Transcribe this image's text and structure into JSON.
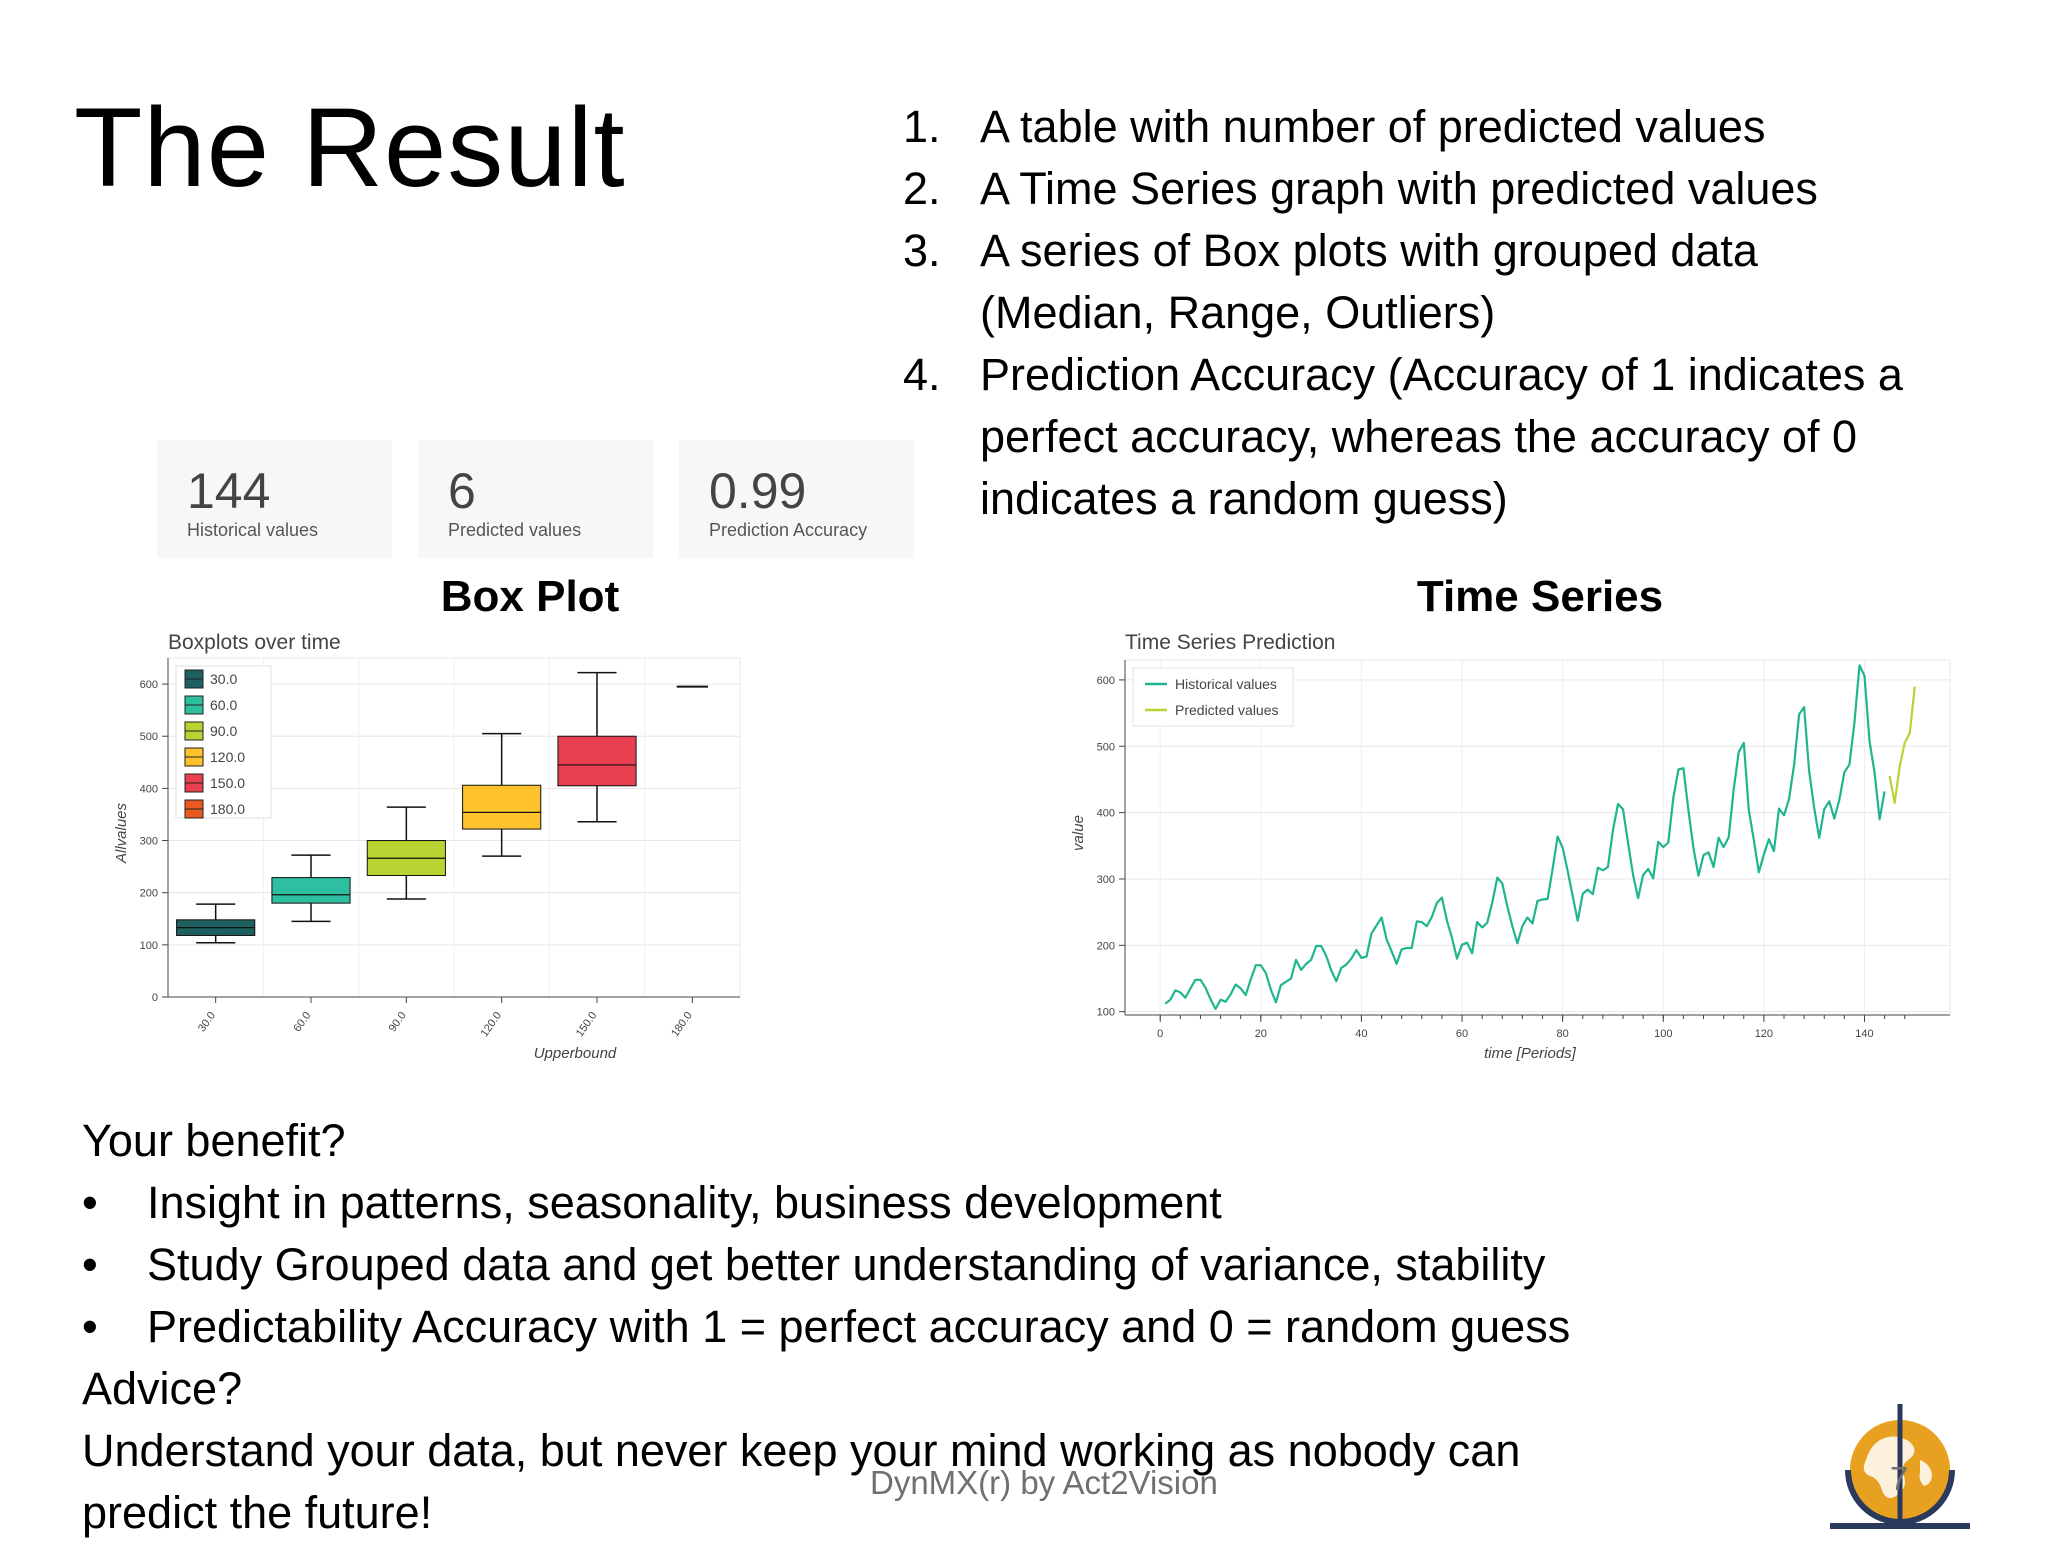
{
  "title": "The Result",
  "list_items": [
    {
      "num": "1.",
      "text": "A table with number of predicted values"
    },
    {
      "num": "2.",
      "text": "A Time Series graph with predicted values"
    },
    {
      "num": "3.",
      "text": "A series of Box plots with grouped data (Median, Range, Outliers)"
    },
    {
      "num": "4.",
      "text": "Prediction Accuracy (Accuracy of 1 indicates a perfect accuracy, whereas the accuracy of 0 indicates a random guess)"
    }
  ],
  "kpis": [
    {
      "value": "144",
      "label": "Historical values"
    },
    {
      "value": "6",
      "label": "Predicted values"
    },
    {
      "value": "0.99",
      "label": "Prediction Accuracy"
    }
  ],
  "box_heading": "Box Plot",
  "ts_heading": "Time Series",
  "chart_data": [
    {
      "type": "box",
      "title": "Boxplots over time",
      "xlabel": "Upperbound",
      "ylabel": "Allvalues",
      "ylim": [
        0,
        650
      ],
      "yticks": [
        0,
        100,
        200,
        300,
        400,
        500,
        600
      ],
      "categories": [
        "30.0",
        "60.0",
        "90.0",
        "120.0",
        "150.0",
        "180.0"
      ],
      "boxes": [
        {
          "name": "30.0",
          "min": 104,
          "q1": 118,
          "median": 133,
          "q3": 148,
          "max": 178,
          "color": "#1e5f5f"
        },
        {
          "name": "60.0",
          "min": 145,
          "q1": 180,
          "median": 196,
          "q3": 229,
          "max": 272,
          "color": "#2ebfa0"
        },
        {
          "name": "90.0",
          "min": 188,
          "q1": 233,
          "median": 266,
          "q3": 300,
          "max": 364,
          "color": "#b8d432"
        },
        {
          "name": "120.0",
          "min": 270,
          "q1": 322,
          "median": 354,
          "q3": 406,
          "max": 505,
          "color": "#fec22c"
        },
        {
          "name": "150.0",
          "min": 336,
          "q1": 405,
          "median": 445,
          "q3": 500,
          "max": 622,
          "color": "#e84050"
        },
        {
          "name": "180.0",
          "min": 595,
          "q1": 595,
          "median": 595,
          "q3": 595,
          "max": 595,
          "color": "#e85a20"
        }
      ],
      "legend_placement": "top-left",
      "grid": true
    },
    {
      "type": "line",
      "title": "Time Series Prediction",
      "xlabel": "time [Periods]",
      "ylabel": "value",
      "xlim": [
        -7,
        157
      ],
      "ylim": [
        95,
        630
      ],
      "xticks": [
        0,
        20,
        40,
        60,
        80,
        100,
        120,
        140
      ],
      "yticks": [
        100,
        200,
        300,
        400,
        500,
        600
      ],
      "legend_placement": "top-left",
      "grid": true,
      "series": [
        {
          "name": "Historical values",
          "color": "#1fb58f",
          "x_start": 1,
          "values": [
            112,
            118,
            132,
            129,
            121,
            135,
            148,
            148,
            136,
            119,
            104,
            118,
            115,
            126,
            141,
            135,
            125,
            149,
            170,
            170,
            158,
            133,
            114,
            140,
            145,
            150,
            178,
            163,
            172,
            178,
            199,
            199,
            184,
            162,
            146,
            166,
            171,
            180,
            193,
            181,
            183,
            218,
            230,
            242,
            209,
            191,
            172,
            194,
            196,
            196,
            236,
            235,
            229,
            243,
            264,
            272,
            237,
            211,
            180,
            201,
            204,
            188,
            235,
            227,
            234,
            264,
            302,
            293,
            259,
            229,
            203,
            229,
            242,
            233,
            267,
            269,
            270,
            315,
            364,
            347,
            312,
            274,
            237,
            278,
            284,
            277,
            317,
            313,
            318,
            374,
            413,
            405,
            355,
            306,
            271,
            306,
            315,
            301,
            356,
            348,
            355,
            422,
            465,
            467,
            404,
            347,
            305,
            336,
            340,
            318,
            362,
            348,
            363,
            435,
            491,
            505,
            404,
            359,
            310,
            337,
            360,
            342,
            406,
            396,
            420,
            472,
            548,
            559,
            463,
            407,
            362,
            405,
            417,
            391,
            419,
            461,
            472,
            535,
            622,
            606,
            508,
            461,
            390,
            432
          ]
        },
        {
          "name": "Predicted values",
          "color": "#b8d432",
          "x_start": 145,
          "values": [
            455,
            415,
            470,
            505,
            520,
            590
          ]
        }
      ]
    }
  ],
  "benefits": {
    "question1": "Your benefit?",
    "bullet_char": "•",
    "bullets": [
      "Insight in patterns, seasonality, business development",
      "Study Grouped data and get better understanding of variance, stability",
      "Predictability Accuracy with 1 = perfect accuracy and 0 = random guess"
    ],
    "question2": "Advice?",
    "advice_line1": "Understand your data, but never keep your mind working as nobody can",
    "advice_line2": "predict the future!"
  },
  "footer": "DynMX(r) by Act2Vision",
  "page_number": "7",
  "logo_icon": "globe-icon"
}
